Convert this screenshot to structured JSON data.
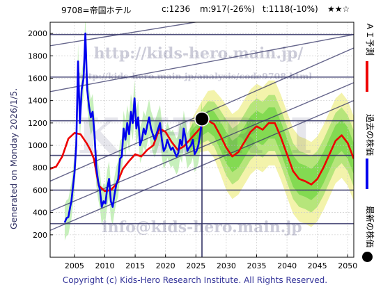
{
  "header": {
    "code_name": "9708=帝国ホテル",
    "current": "c:1236",
    "min": "m:917(-26%)",
    "target": "t:1118(-10%)",
    "rating": "★★☆"
  },
  "side_label": "Generated on Monday 2026/1/5.",
  "watermarks": {
    "url": "http://kids-hero.main.jp/",
    "analysis_url": "http://kids-hero.main.jp/analysis/code9708.html",
    "big": "KHRI",
    "email": "info@kids-hero.main.jp"
  },
  "legend": {
    "ai_forecast": "ＡＩ予測",
    "past_price": "過去の株価",
    "latest_price": "最新の株価"
  },
  "footer": "Copyright (c) Kids-Hero Research Institute. All Rights Reserved.",
  "colors": {
    "ai_forecast": "#ee0000",
    "past_price": "#0000ee",
    "band_green": "#44cc22",
    "band_yellow": "#eeee88",
    "grid_line": "#333366",
    "marker": "#000000"
  },
  "chart_data": {
    "type": "line",
    "xlim": [
      2001,
      2051
    ],
    "ylim": [
      0,
      2100
    ],
    "x_ticks": [
      2005,
      2010,
      2015,
      2020,
      2025,
      2030,
      2035,
      2040,
      2045,
      2050
    ],
    "y_ticks": [
      200,
      400,
      600,
      800,
      1000,
      1200,
      1400,
      1600,
      1800,
      2000
    ],
    "grid": true,
    "horizontal_levels": [
      300,
      600,
      910,
      1220,
      1610,
      1990
    ],
    "trend_lines": [
      [
        [
          2001,
          1890
        ],
        [
          2026,
          2110
        ]
      ],
      [
        [
          2001,
          1480
        ],
        [
          2051,
          1990
        ]
      ],
      [
        [
          2001,
          410
        ],
        [
          2051,
          1560
        ]
      ],
      [
        [
          2001,
          680
        ],
        [
          2051,
          1870
        ]
      ],
      [
        [
          2001,
          240
        ],
        [
          2051,
          1400
        ]
      ]
    ],
    "latest_point": {
      "x": 2026,
      "y": 1236
    },
    "series": [
      {
        "name": "ＡＩ予測",
        "x": [
          2001,
          2002,
          2003,
          2004,
          2005,
          2006,
          2007,
          2007.6,
          2008.2,
          2009,
          2010,
          2011,
          2012,
          2013,
          2014,
          2015,
          2016,
          2017,
          2018,
          2019,
          2020,
          2021,
          2022,
          2023,
          2024,
          2025,
          2026,
          2027,
          2028,
          2029,
          2030,
          2031,
          2032,
          2033,
          2034,
          2035,
          2036,
          2037,
          2038,
          2039,
          2040,
          2041,
          2042,
          2043,
          2044,
          2045,
          2046,
          2047,
          2048,
          2049,
          2050,
          2051
        ],
        "values": [
          790,
          810,
          900,
          1060,
          1110,
          1100,
          1020,
          960,
          880,
          640,
          590,
          600,
          660,
          790,
          860,
          920,
          900,
          960,
          1000,
          1150,
          1120,
          1030,
          960,
          990,
          1050,
          1110,
          1170,
          1220,
          1190,
          1090,
          980,
          900,
          940,
          1030,
          1120,
          1170,
          1140,
          1200,
          1200,
          1070,
          920,
          770,
          700,
          680,
          650,
          700,
          800,
          920,
          1040,
          1090,
          1020,
          880
        ]
      },
      {
        "name": "過去の株価",
        "x": [
          2003.4,
          2003.7,
          2004.0,
          2004.3,
          2004.5,
          2004.8,
          2005.0,
          2005.3,
          2005.6,
          2005.9,
          2006.2,
          2006.5,
          2006.8,
          2007.1,
          2007.4,
          2007.7,
          2008.0,
          2008.3,
          2008.6,
          2008.9,
          2009.2,
          2009.5,
          2009.8,
          2010.1,
          2010.4,
          2010.7,
          2011.0,
          2011.3,
          2011.6,
          2011.9,
          2012.2,
          2012.5,
          2012.8,
          2013.1,
          2013.4,
          2013.7,
          2014.0,
          2014.3,
          2014.6,
          2014.9,
          2015.2,
          2015.5,
          2015.8,
          2016.1,
          2016.4,
          2016.7,
          2017.0,
          2017.3,
          2017.6,
          2017.9,
          2018.2,
          2018.5,
          2018.8,
          2019.1,
          2019.4,
          2019.7,
          2020.0,
          2020.3,
          2020.6,
          2020.9,
          2021.2,
          2021.5,
          2021.8,
          2022.1,
          2022.4,
          2022.7,
          2023.0,
          2023.3,
          2023.6,
          2023.9,
          2024.2,
          2024.5,
          2024.8,
          2025.1,
          2025.4,
          2025.7,
          2026.0
        ],
        "values": [
          310,
          350,
          360,
          450,
          500,
          650,
          750,
          1000,
          1750,
          1200,
          1500,
          1600,
          2000,
          1500,
          1350,
          1250,
          1300,
          1100,
          800,
          680,
          600,
          450,
          500,
          480,
          620,
          700,
          500,
          450,
          560,
          650,
          700,
          880,
          900,
          1150,
          1050,
          1200,
          1100,
          1300,
          1200,
          1420,
          1150,
          1250,
          1000,
          1050,
          1150,
          1100,
          1180,
          1250,
          1150,
          1100,
          1050,
          1100,
          1150,
          1200,
          1050,
          950,
          980,
          1050,
          1000,
          960,
          980,
          940,
          900,
          930,
          1050,
          1000,
          1150,
          1060,
          950,
          980,
          1000,
          1050,
          920,
          950,
          1000,
          1100,
          1236
        ]
      }
    ]
  }
}
